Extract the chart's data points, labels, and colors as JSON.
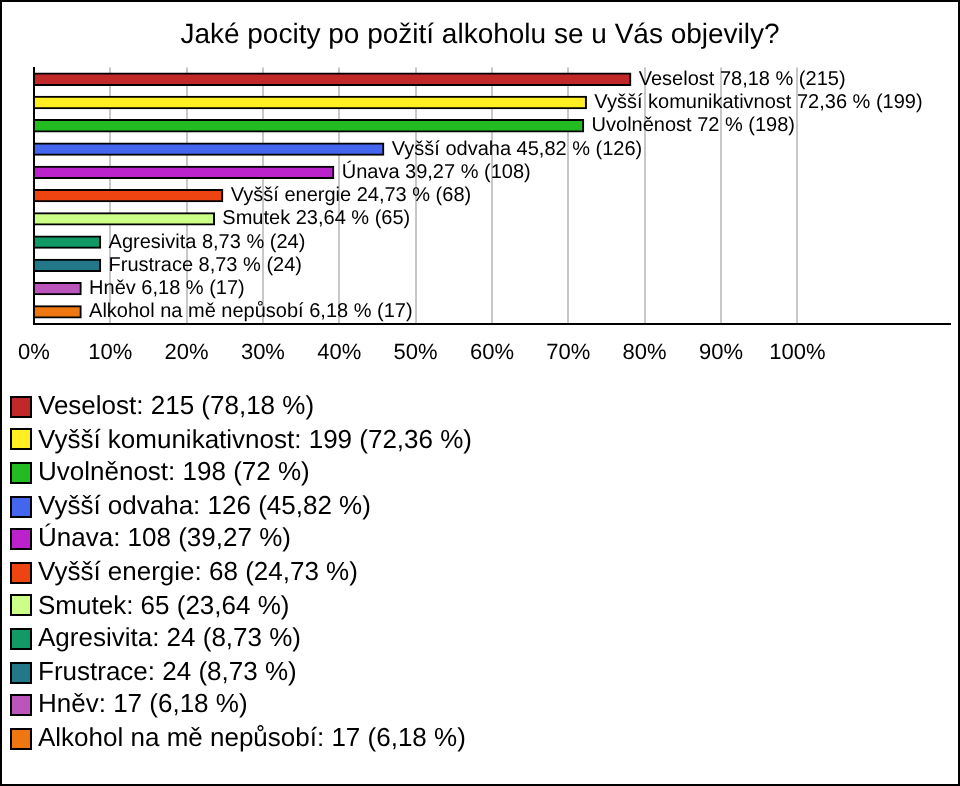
{
  "chart_data": {
    "type": "bar",
    "orientation": "horizontal",
    "title": "Jaké pocity po požití alkoholu se u Vás objevily?",
    "categories": [
      "Veselost",
      "Vyšší komunikativnost",
      "Uvolněnost",
      "Vyšší odvaha",
      "Únava",
      "Vyšší energie",
      "Smutek",
      "Agresivita",
      "Frustrace",
      "Hněv",
      "Alkohol na mě nepůsobí"
    ],
    "values": [
      78.18,
      72.36,
      72,
      45.82,
      39.27,
      24.73,
      23.64,
      8.73,
      8.73,
      6.18,
      6.18
    ],
    "colors": [
      "#c0282a",
      "#ffee22",
      "#22bb22",
      "#4466ee",
      "#bb22cc",
      "#ee4411",
      "#ccff88",
      "#119966",
      "#227788",
      "#bb55bb",
      "#ee7711"
    ],
    "value_labels": [
      "78,18 % (215)",
      "72,36 % (199)",
      "72 % (198)",
      "45,82 % (126)",
      "39,27 % (108)",
      "24,73 % (68)",
      "23,64 % (65)",
      "8,73 % (24)",
      "8,73 % (24)",
      "6,18 % (17)",
      "6,18 % (17)"
    ],
    "xlim": [
      0,
      120
    ],
    "xticks": [
      {
        "value": 0,
        "label": "0%"
      },
      {
        "value": 10,
        "label": "10%"
      },
      {
        "value": 20,
        "label": "20%"
      },
      {
        "value": 30,
        "label": "30%"
      },
      {
        "value": 40,
        "label": "40%"
      },
      {
        "value": 50,
        "label": "50%"
      },
      {
        "value": 60,
        "label": "60%"
      },
      {
        "value": 70,
        "label": "70%"
      },
      {
        "value": 80,
        "label": "80%"
      },
      {
        "value": 90,
        "label": "90%"
      },
      {
        "value": 100,
        "label": "100%"
      }
    ],
    "grid": "x",
    "annotations": [
      "Veselost: 215 (78,18 %)",
      "Vyšší komunikativnost: 199 (72,36 %)",
      "Uvolněnost: 198 (72 %)",
      "Vyšší odvaha: 126 (45,82 %)",
      "Únava: 108 (39,27 %)",
      "Vyšší energie: 68 (24,73 %)",
      "Smutek: 65 (23,64 %)",
      "Agresivita: 24 (8,73 %)",
      "Frustrace: 24 (8,73 %)",
      "Hněv: 17 (6,18 %)",
      "Alkohol na mě nepůsobí: 17 (6,18 %)"
    ]
  }
}
